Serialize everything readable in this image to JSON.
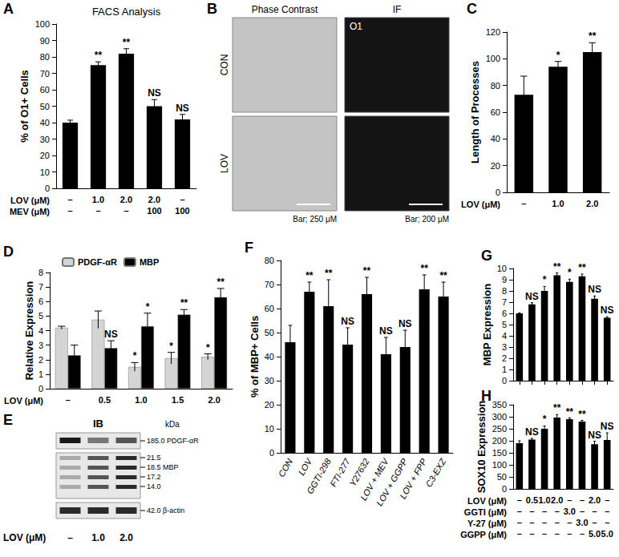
{
  "chart_data": [
    {
      "panel": "A",
      "type": "bar",
      "title": "FACS Analysis",
      "y_label": "% of O1+ Cells",
      "x_rows": [
        {
          "label": "LOV (μM)",
          "values": [
            "–",
            "1.0",
            "2.0",
            "2.0",
            "–"
          ]
        },
        {
          "label": "MEV (μM)",
          "values": [
            "–",
            "–",
            "–",
            "100",
            "100"
          ]
        }
      ],
      "values": [
        40,
        75,
        82,
        50,
        42
      ],
      "errors": [
        1.5,
        2,
        3,
        4,
        3
      ],
      "annotations": [
        null,
        "**",
        "**",
        "NS",
        "NS"
      ],
      "color": "#000000",
      "ylim": [
        0,
        100
      ],
      "yticks": [
        0,
        10,
        20,
        30,
        40,
        50,
        60,
        70,
        80,
        90,
        100
      ],
      "grid": false
    },
    {
      "panel": "C",
      "type": "bar",
      "y_label": "Length of Processes",
      "x_rows": [
        {
          "label": "LOV (μM)",
          "values": [
            "–",
            "1.0",
            "2.0"
          ]
        }
      ],
      "values": [
        73,
        94,
        105
      ],
      "errors": [
        14,
        4,
        7
      ],
      "annotations": [
        null,
        "*",
        "**"
      ],
      "color": "#000000",
      "ylim": [
        0,
        120
      ],
      "yticks": [
        0,
        20,
        40,
        60,
        80,
        100,
        120
      ],
      "grid": false
    },
    {
      "panel": "D",
      "type": "bar",
      "y_label": "Relative Expression",
      "x_rows": [
        {
          "label": "LOV (μM)",
          "values": [
            "–",
            "0.5",
            "1.0",
            "1.5",
            "2.0"
          ]
        }
      ],
      "series": [
        {
          "name": "PDGF-αR",
          "color": "#d4d4d4",
          "values": [
            4.2,
            4.75,
            1.5,
            2.1,
            2.2
          ],
          "errors": [
            0.1,
            0.6,
            0.3,
            0.4,
            0.2
          ],
          "annotations": [
            null,
            null,
            "*",
            "*",
            "*"
          ]
        },
        {
          "name": "MBP",
          "color": "#000000",
          "values": [
            2.3,
            2.8,
            4.3,
            5.1,
            6.3
          ],
          "errors": [
            0.7,
            0.5,
            0.9,
            0.35,
            0.6
          ],
          "annotations": [
            null,
            "NS",
            "*",
            "**",
            "**"
          ]
        }
      ],
      "legend": "top",
      "ylim": [
        0,
        8
      ],
      "yticks": [
        0,
        1,
        2,
        3,
        4,
        5,
        6,
        7,
        8
      ],
      "grid": false
    },
    {
      "panel": "F",
      "type": "bar",
      "y_label": "% of MBP+ Cells",
      "categories": [
        "CON",
        "LOV",
        "GGTI-298",
        "FTI-277",
        "Y27632",
        "LOV + MEV",
        "LOV + GGPP",
        "LOV + FPP",
        "C3-EXZ"
      ],
      "values": [
        46,
        67,
        61,
        45,
        66,
        41,
        44,
        68,
        65
      ],
      "errors": [
        7,
        4,
        11,
        7,
        7,
        7,
        7,
        6,
        6
      ],
      "annotations": [
        null,
        "**",
        "**",
        "NS",
        "**",
        "NS",
        "NS",
        "**",
        "**"
      ],
      "color": "#000000",
      "ylim": [
        0,
        80
      ],
      "yticks": [
        0,
        10,
        20,
        30,
        40,
        50,
        60,
        70,
        80
      ],
      "grid": false
    },
    {
      "panel": "G",
      "type": "bar",
      "y_label": "MBP Expression",
      "tick_labels": "y",
      "values": [
        6.0,
        6.8,
        8.0,
        9.4,
        8.8,
        9.3,
        7.3,
        5.6
      ],
      "errors": [
        0.05,
        0.15,
        0.4,
        0.2,
        0.25,
        0.2,
        0.25,
        0.1
      ],
      "annotations": [
        null,
        "NS",
        "*",
        "**",
        "*",
        "**",
        "NS",
        "NS"
      ],
      "color": "#000000",
      "ylim": [
        0,
        10
      ],
      "yticks": [
        0,
        1,
        2,
        3,
        4,
        5,
        6,
        7,
        8,
        9,
        10
      ],
      "grid": false
    },
    {
      "panel": "H",
      "type": "bar",
      "y_label": "SOX10 Expression",
      "x_rows": [
        {
          "label": "LOV (μM)",
          "values": [
            "–",
            "0.5",
            "1.0",
            "2.0",
            "–",
            "–",
            "2.0",
            "–"
          ]
        },
        {
          "label": "GGTI (μM)",
          "values": [
            "–",
            "–",
            "–",
            "–",
            "3.0",
            "–",
            "–",
            "–"
          ]
        },
        {
          "label": "Y-27 (μM)",
          "values": [
            "–",
            "–",
            "–",
            "–",
            "–",
            "3.0",
            "–",
            "–"
          ]
        },
        {
          "label": "GGPP (μM)",
          "values": [
            "–",
            "–",
            "–",
            "–",
            "–",
            "–",
            "5.0",
            "5.0"
          ]
        }
      ],
      "values": [
        190,
        205,
        250,
        297,
        290,
        280,
        186,
        203
      ],
      "errors": [
        10,
        5,
        12,
        12,
        5,
        5,
        12,
        30
      ],
      "annotations": [
        null,
        "NS",
        "*",
        "**",
        "**",
        "**",
        "NS",
        "NS"
      ],
      "color": "#000000",
      "ylim": [
        0,
        350
      ],
      "yticks": [
        0,
        50,
        100,
        150,
        200,
        250,
        300,
        350
      ],
      "grid": false
    }
  ],
  "image_panels": [
    {
      "panel": "B",
      "columns": [
        "Phase Contrast",
        "IF"
      ],
      "rows": [
        "CON",
        "LOV"
      ],
      "inset": "O1",
      "scale_bars": [
        "Bar; 250 μM",
        "Bar; 200 μM"
      ]
    },
    {
      "panel": "E",
      "title": "IB",
      "unit": "kDa",
      "markers": [
        {
          "kDa": "185.0",
          "protein": "PDGF-αR"
        },
        {
          "kDa": "21.5"
        },
        {
          "kDa": "18.5",
          "protein": "MBP"
        },
        {
          "kDa": "17.2"
        },
        {
          "kDa": "14.0"
        },
        {
          "kDa": "42.0",
          "protein": "β-actin"
        }
      ],
      "lanes_label": "LOV (μM)",
      "lanes": [
        "–",
        "1.0",
        "2.0"
      ]
    }
  ]
}
